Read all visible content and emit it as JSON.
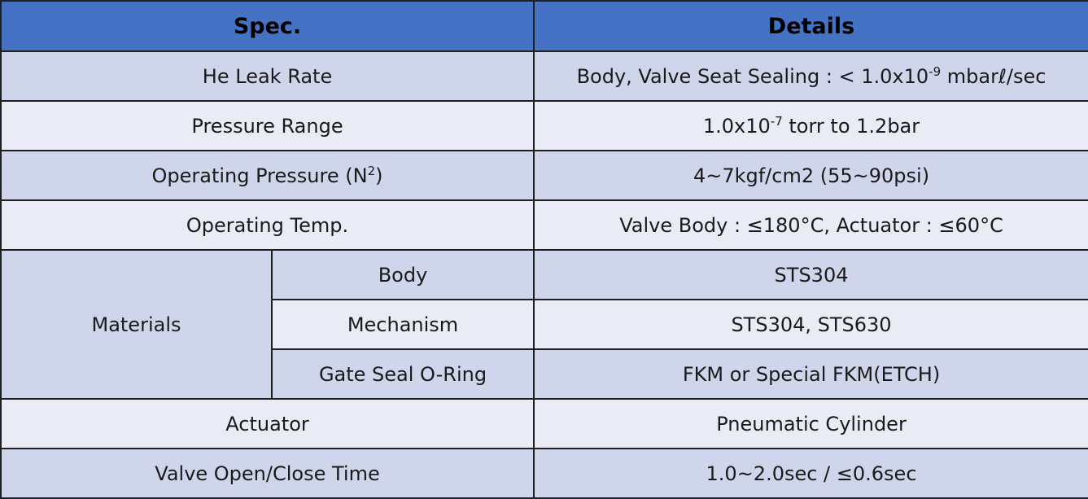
{
  "header": {
    "spec": "Spec.",
    "details": "Details"
  },
  "rows": {
    "leak": {
      "label": "He Leak Rate",
      "pre": "Body, Valve Seat Sealing : < 1.0x10",
      "exp": "-9",
      "post": " mbarℓ/sec"
    },
    "pressure_range": {
      "label": "Pressure Range",
      "pre": "1.0x10",
      "exp": "-7",
      "post": " torr to 1.2bar"
    },
    "operating_pressure": {
      "label_pre": "Operating Pressure (N",
      "label_exp": "2",
      "label_post": ")",
      "value": "4~7kgf/cm2 (55~90psi)"
    },
    "operating_temp": {
      "label": "Operating Temp.",
      "value": "Valve Body : ≤180°C, Actuator : ≤60°C"
    },
    "materials": {
      "label": "Materials",
      "items": [
        {
          "name": "Body",
          "value": "STS304"
        },
        {
          "name": "Mechanism",
          "value": "STS304, STS630"
        },
        {
          "name": "Gate Seal O-Ring",
          "value": "FKM or Special FKM(ETCH)"
        }
      ]
    },
    "actuator": {
      "label": "Actuator",
      "value": "Pneumatic Cylinder"
    },
    "open_close": {
      "label": "Valve Open/Close Time",
      "value": "1.0~2.0sec / ≤0.6sec"
    }
  },
  "colors": {
    "header": "#4472c4",
    "row_dark": "#cfd5ea",
    "row_light": "#e9ebf5",
    "border": "#1f1f1f"
  }
}
